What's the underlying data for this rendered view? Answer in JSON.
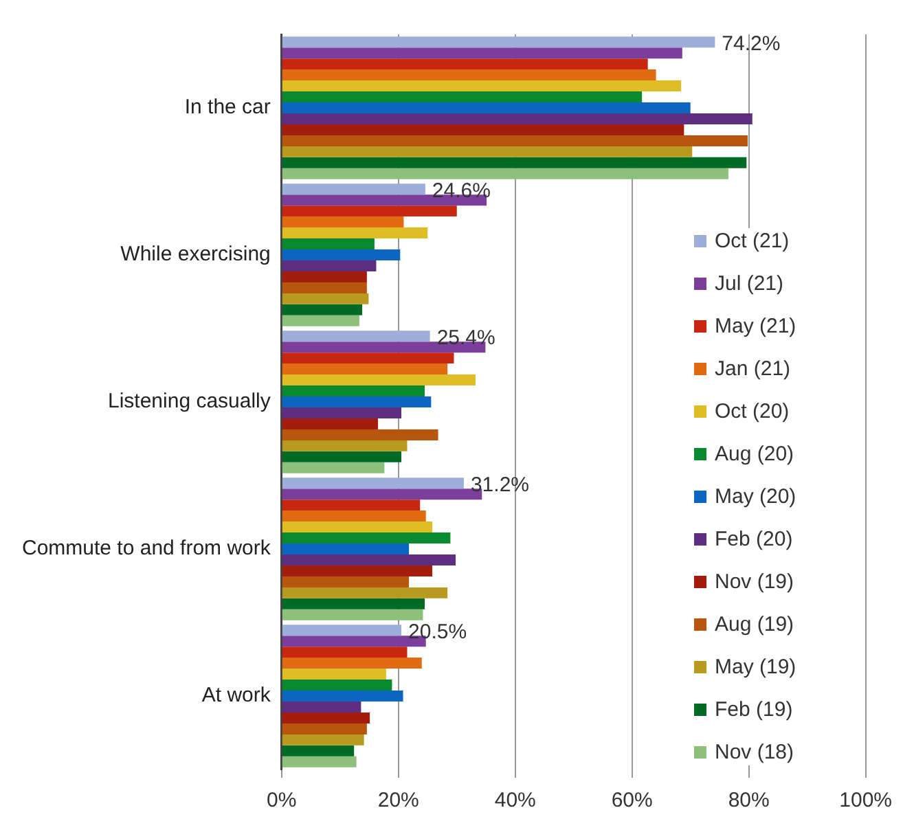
{
  "chart_data": {
    "type": "bar",
    "orientation": "horizontal",
    "categories": [
      "In the car",
      "While exercising",
      "Listening casually",
      "Commute to and from work",
      "At work"
    ],
    "series": [
      {
        "name": "Oct (21)",
        "color": "#9dafd9",
        "values": [
          74.2,
          24.6,
          25.4,
          31.2,
          20.5
        ],
        "value_labels": [
          "74.2%",
          "24.6%",
          "25.4%",
          "31.2%",
          "20.5%"
        ]
      },
      {
        "name": "Jul (21)",
        "color": "#7b3f9b",
        "values": [
          68.6,
          35.1,
          34.9,
          34.3,
          24.7
        ]
      },
      {
        "name": "May (21)",
        "color": "#c8260e",
        "values": [
          62.7,
          30.0,
          29.5,
          23.7,
          21.5
        ]
      },
      {
        "name": "Jan (21)",
        "color": "#e06b12",
        "values": [
          64.1,
          20.9,
          28.4,
          24.7,
          24.0
        ]
      },
      {
        "name": "Oct (20)",
        "color": "#dfbe25",
        "values": [
          68.4,
          25.0,
          33.2,
          25.8,
          17.9
        ]
      },
      {
        "name": "Aug (20)",
        "color": "#0a8a2e",
        "values": [
          61.7,
          15.9,
          24.5,
          28.9,
          18.9
        ]
      },
      {
        "name": "May (20)",
        "color": "#0b66c2",
        "values": [
          70.0,
          20.3,
          25.6,
          21.8,
          20.8
        ]
      },
      {
        "name": "Feb (20)",
        "color": "#5e2e82",
        "values": [
          80.6,
          16.2,
          20.5,
          29.8,
          13.6
        ]
      },
      {
        "name": "Nov (19)",
        "color": "#a31c0c",
        "values": [
          68.9,
          14.6,
          16.5,
          25.8,
          15.1
        ]
      },
      {
        "name": "Aug (19)",
        "color": "#b7560c",
        "values": [
          79.8,
          14.6,
          26.8,
          21.8,
          14.6
        ]
      },
      {
        "name": "May (19)",
        "color": "#b89b1e",
        "values": [
          70.3,
          14.9,
          21.5,
          28.4,
          14.1
        ]
      },
      {
        "name": "Feb (19)",
        "color": "#006b24",
        "values": [
          79.6,
          13.8,
          20.5,
          24.5,
          12.4
        ]
      },
      {
        "name": "Nov (18)",
        "color": "#8cc07b",
        "values": [
          76.5,
          13.3,
          17.6,
          24.2,
          12.8
        ]
      }
    ],
    "xlim": [
      0,
      100
    ],
    "xticks": [
      {
        "value": 0,
        "label": "0%"
      },
      {
        "value": 20,
        "label": "20%"
      },
      {
        "value": 40,
        "label": "40%"
      },
      {
        "value": 60,
        "label": "60%"
      },
      {
        "value": 80,
        "label": "80%"
      },
      {
        "value": 100,
        "label": "100%"
      }
    ],
    "grid": "x",
    "legend": "right"
  }
}
